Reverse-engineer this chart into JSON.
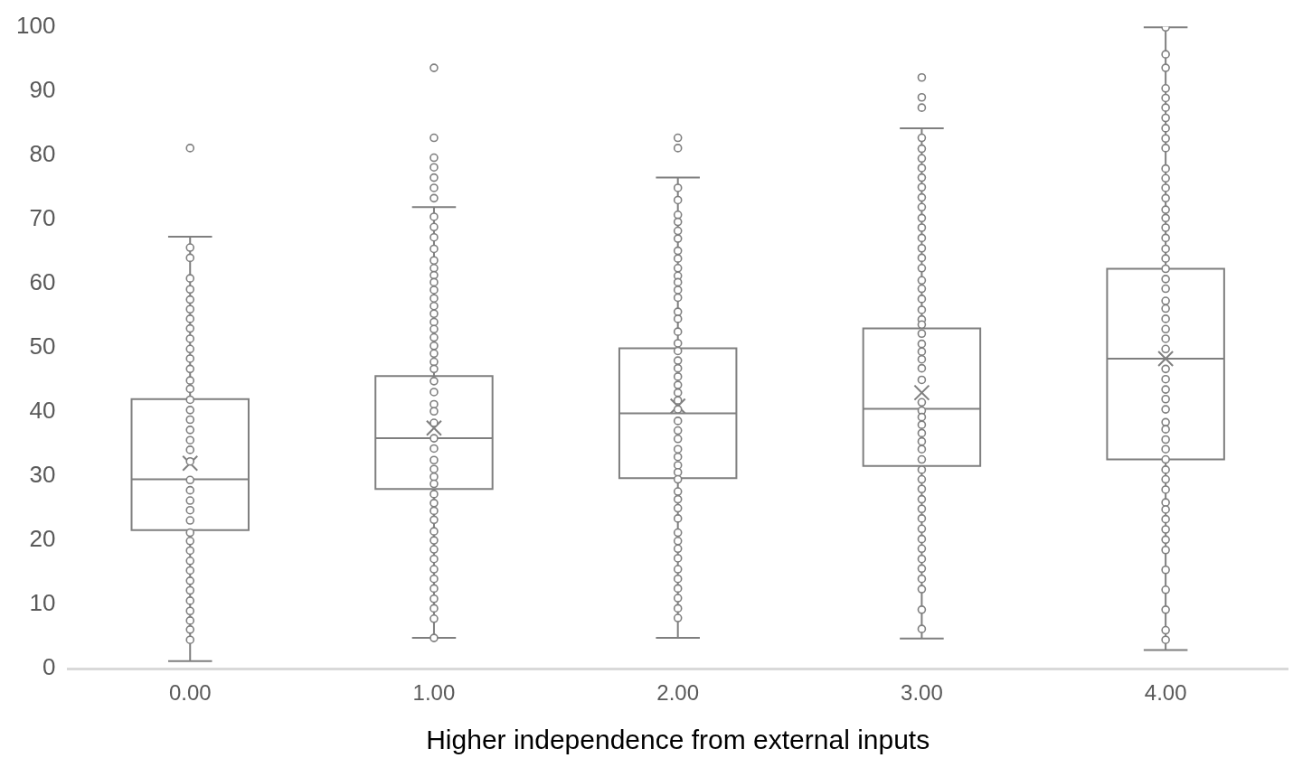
{
  "chart_data": {
    "type": "box",
    "xlabel": "Higher independence from external inputs",
    "categories": [
      "0.00",
      "1.00",
      "2.00",
      "3.00",
      "4.00"
    ],
    "color": "#7f7f7f",
    "ylim": [
      0,
      100
    ],
    "yticks": [
      0,
      10,
      20,
      30,
      40,
      50,
      60,
      70,
      80,
      90,
      100
    ],
    "grid": false,
    "marker": "circle",
    "boxes": [
      {
        "low": 1.2,
        "q1": 21.6,
        "median": 29.5,
        "q3": 42.0,
        "high": 67.3,
        "mean": 32.0,
        "outliers": [
          81.1
        ]
      },
      {
        "low": 4.8,
        "q1": 28.0,
        "median": 35.9,
        "q3": 45.6,
        "high": 71.9,
        "mean": 37.5,
        "outliers": [
          93.6,
          82.7,
          79.6,
          78.1,
          76.5,
          74.9,
          73.3
        ]
      },
      {
        "low": 4.8,
        "q1": 29.7,
        "median": 39.8,
        "q3": 49.9,
        "high": 76.5,
        "mean": 40.9,
        "outliers": [
          82.7,
          81.1
        ]
      },
      {
        "low": 4.7,
        "q1": 31.6,
        "median": 40.5,
        "q3": 53.0,
        "high": 84.2,
        "mean": 43.0,
        "outliers": [
          92.1,
          89.0,
          87.4
        ]
      },
      {
        "low": 2.9,
        "q1": 32.6,
        "median": 48.3,
        "q3": 62.3,
        "high": 99.9,
        "mean": 48.3
      }
    ],
    "series": [
      {
        "type": "scatter",
        "color": "#7f7f7f",
        "x": [
          "0.00",
          "0.00",
          "0.00",
          "0.00",
          "0.00",
          "0.00",
          "0.00",
          "0.00",
          "0.00",
          "0.00",
          "0.00",
          "0.00",
          "0.00",
          "0.00",
          "0.00",
          "0.00",
          "0.00",
          "0.00",
          "0.00",
          "0.00",
          "0.00",
          "0.00",
          "0.00",
          "0.00",
          "0.00",
          "0.00",
          "0.00",
          "0.00",
          "0.00",
          "0.00",
          "0.00",
          "0.00",
          "0.00",
          "0.00",
          "0.00",
          "0.00",
          "0.00",
          "0.00"
        ],
        "values": [
          65.6,
          64.0,
          60.8,
          59.1,
          57.5,
          56.0,
          54.5,
          53.0,
          51.4,
          49.8,
          48.3,
          46.7,
          44.9,
          43.6,
          41.9,
          40.3,
          38.8,
          37.2,
          35.6,
          34.1,
          32.3,
          29.4,
          27.8,
          26.2,
          24.7,
          23.1,
          21.2,
          19.9,
          18.4,
          16.8,
          15.3,
          13.7,
          12.2,
          10.6,
          9.0,
          7.5,
          6.1,
          4.5
        ]
      },
      {
        "type": "scatter",
        "color": "#7f7f7f",
        "x": [
          "1.00",
          "1.00",
          "1.00",
          "1.00",
          "1.00",
          "1.00",
          "1.00",
          "1.00",
          "1.00",
          "1.00",
          "1.00",
          "1.00",
          "1.00",
          "1.00",
          "1.00",
          "1.00",
          "1.00",
          "1.00",
          "1.00",
          "1.00",
          "1.00",
          "1.00",
          "1.00",
          "1.00",
          "1.00",
          "1.00",
          "1.00",
          "1.00",
          "1.00",
          "1.00",
          "1.00",
          "1.00",
          "1.00",
          "1.00",
          "1.00",
          "1.00",
          "1.00",
          "1.00",
          "1.00",
          "1.00",
          "1.00",
          "1.00",
          "1.00",
          "1.00",
          "1.00"
        ],
        "values": [
          70.4,
          68.8,
          67.2,
          65.4,
          63.6,
          62.4,
          61.3,
          60.2,
          59.0,
          57.7,
          56.5,
          55.3,
          54.0,
          52.9,
          51.6,
          50.3,
          49.1,
          47.8,
          46.7,
          44.8,
          43.1,
          41.2,
          40.1,
          38.3,
          35.9,
          34.3,
          32.5,
          31.1,
          29.9,
          28.8,
          27.2,
          25.8,
          24.6,
          23.2,
          21.4,
          20.0,
          18.6,
          17.1,
          15.5,
          14.0,
          12.5,
          10.9,
          9.4,
          7.8,
          4.8
        ]
      },
      {
        "type": "scatter",
        "color": "#7f7f7f",
        "x": [
          "2.00",
          "2.00",
          "2.00",
          "2.00",
          "2.00",
          "2.00",
          "2.00",
          "2.00",
          "2.00",
          "2.00",
          "2.00",
          "2.00",
          "2.00",
          "2.00",
          "2.00",
          "2.00",
          "2.00",
          "2.00",
          "2.00",
          "2.00",
          "2.00",
          "2.00",
          "2.00",
          "2.00",
          "2.00",
          "2.00",
          "2.00",
          "2.00",
          "2.00",
          "2.00",
          "2.00",
          "2.00",
          "2.00",
          "2.00",
          "2.00",
          "2.00",
          "2.00",
          "2.00",
          "2.00",
          "2.00",
          "2.00",
          "2.00",
          "2.00",
          "2.00",
          "2.00",
          "2.00",
          "2.00"
        ],
        "values": [
          74.9,
          73.0,
          70.7,
          69.6,
          68.2,
          67.0,
          65.1,
          63.9,
          62.4,
          61.2,
          60.2,
          59.0,
          57.8,
          55.6,
          54.5,
          52.5,
          50.7,
          49.5,
          48.0,
          46.8,
          45.5,
          44.2,
          43.0,
          41.8,
          40.4,
          38.6,
          37.1,
          35.8,
          34.2,
          33.0,
          31.7,
          30.6,
          29.5,
          27.6,
          26.4,
          25.0,
          23.4,
          21.2,
          19.9,
          18.7,
          17.2,
          15.5,
          14.0,
          12.5,
          11.0,
          9.4,
          7.9
        ]
      },
      {
        "type": "scatter",
        "color": "#7f7f7f",
        "x": [
          "3.00",
          "3.00",
          "3.00",
          "3.00",
          "3.00",
          "3.00",
          "3.00",
          "3.00",
          "3.00",
          "3.00",
          "3.00",
          "3.00",
          "3.00",
          "3.00",
          "3.00",
          "3.00",
          "3.00",
          "3.00",
          "3.00",
          "3.00",
          "3.00",
          "3.00",
          "3.00",
          "3.00",
          "3.00",
          "3.00",
          "3.00",
          "3.00",
          "3.00",
          "3.00",
          "3.00",
          "3.00",
          "3.00",
          "3.00",
          "3.00",
          "3.00",
          "3.00",
          "3.00",
          "3.00",
          "3.00",
          "3.00",
          "3.00",
          "3.00",
          "3.00",
          "3.00",
          "3.00",
          "3.00",
          "3.00",
          "3.00"
        ],
        "values": [
          82.7,
          81.0,
          79.5,
          78.0,
          76.5,
          75.0,
          73.4,
          71.9,
          70.2,
          68.7,
          67.1,
          65.5,
          64.0,
          62.4,
          60.5,
          59.2,
          57.6,
          55.9,
          54.4,
          53.6,
          52.2,
          50.6,
          49.4,
          48.2,
          46.8,
          45.0,
          41.5,
          40.2,
          39.2,
          38.0,
          36.7,
          35.4,
          34.2,
          32.6,
          31.0,
          29.5,
          28.0,
          26.4,
          24.9,
          23.4,
          21.8,
          20.2,
          18.7,
          17.1,
          15.6,
          14.0,
          12.4,
          9.2,
          6.2
        ]
      },
      {
        "type": "scatter",
        "color": "#7f7f7f",
        "x": [
          "4.00",
          "4.00",
          "4.00",
          "4.00",
          "4.00",
          "4.00",
          "4.00",
          "4.00",
          "4.00",
          "4.00",
          "4.00",
          "4.00",
          "4.00",
          "4.00",
          "4.00",
          "4.00",
          "4.00",
          "4.00",
          "4.00",
          "4.00",
          "4.00",
          "4.00",
          "4.00",
          "4.00",
          "4.00",
          "4.00",
          "4.00",
          "4.00",
          "4.00",
          "4.00",
          "4.00",
          "4.00",
          "4.00",
          "4.00",
          "4.00",
          "4.00",
          "4.00",
          "4.00",
          "4.00",
          "4.00",
          "4.00",
          "4.00",
          "4.00",
          "4.00",
          "4.00",
          "4.00",
          "4.00",
          "4.00",
          "4.00",
          "4.00",
          "4.00",
          "4.00",
          "4.00"
        ],
        "values": [
          99.9,
          95.7,
          93.6,
          90.4,
          88.9,
          87.4,
          85.8,
          84.2,
          82.6,
          81.1,
          77.9,
          76.4,
          74.9,
          73.3,
          71.5,
          70.2,
          68.7,
          67.1,
          65.4,
          63.9,
          62.3,
          60.7,
          59.2,
          57.3,
          56.1,
          54.5,
          52.9,
          51.4,
          49.8,
          46.7,
          45.1,
          43.5,
          42.0,
          40.4,
          38.4,
          37.3,
          35.7,
          34.2,
          32.6,
          31.0,
          29.5,
          27.9,
          25.9,
          24.8,
          23.3,
          21.7,
          20.1,
          18.5,
          15.4,
          12.3,
          9.2,
          6.0,
          4.5
        ]
      }
    ]
  }
}
